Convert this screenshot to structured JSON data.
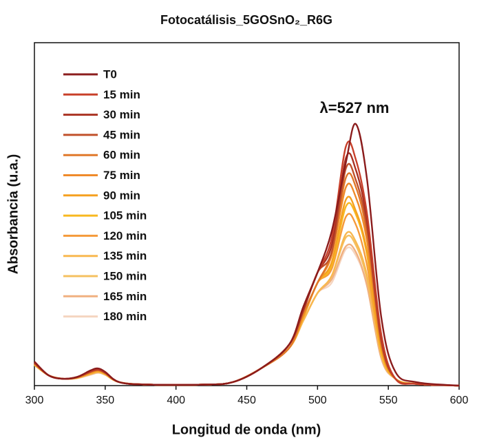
{
  "chart_data": {
    "type": "line",
    "title": "Fotocatálisis_5GOSnO₂_R6G",
    "x_label": "Longitud de onda (nm)",
    "y_label": "Absorbancia (u.a.)",
    "annotation": "λ=527 nm",
    "legend": "upper left",
    "xlim": [
      300,
      600
    ],
    "xticks": [
      300,
      350,
      400,
      450,
      500,
      550,
      600
    ],
    "ylim": [
      0,
      1
    ],
    "x": [
      300,
      310,
      320,
      330,
      340,
      345,
      350,
      360,
      380,
      420,
      440,
      460,
      480,
      490,
      500,
      510,
      520,
      527,
      535,
      545,
      555,
      570,
      600
    ],
    "series": [
      {
        "name": "T0",
        "color": "#8b1c1c",
        "values": [
          0.07,
          0.03,
          0.02,
          0.025,
          0.045,
          0.05,
          0.04,
          0.01,
          0.003,
          0.003,
          0.01,
          0.05,
          0.12,
          0.23,
          0.33,
          0.45,
          0.65,
          0.763,
          0.6,
          0.2,
          0.04,
          0.01,
          0
        ]
      },
      {
        "name": "15 min",
        "color": "#c8402a",
        "values": [
          0.068,
          0.03,
          0.02,
          0.025,
          0.043,
          0.048,
          0.039,
          0.01,
          0.003,
          0.003,
          0.01,
          0.05,
          0.12,
          0.23,
          0.33,
          0.43,
          0.697,
          0.66,
          0.5,
          0.15,
          0.02,
          0.005,
          0
        ]
      },
      {
        "name": "30 min",
        "color": "#a93222",
        "values": [
          0.067,
          0.03,
          0.02,
          0.025,
          0.042,
          0.047,
          0.038,
          0.01,
          0.003,
          0.003,
          0.01,
          0.05,
          0.12,
          0.22,
          0.33,
          0.41,
          0.663,
          0.63,
          0.48,
          0.14,
          0.02,
          0.005,
          0
        ]
      },
      {
        "name": "45 min",
        "color": "#c0502a",
        "values": [
          0.066,
          0.03,
          0.02,
          0.024,
          0.041,
          0.046,
          0.037,
          0.01,
          0.003,
          0.003,
          0.01,
          0.05,
          0.12,
          0.22,
          0.33,
          0.39,
          0.633,
          0.6,
          0.46,
          0.13,
          0.02,
          0.005,
          0
        ]
      },
      {
        "name": "60 min",
        "color": "#e0782a",
        "values": [
          0.065,
          0.03,
          0.02,
          0.024,
          0.04,
          0.045,
          0.036,
          0.01,
          0.003,
          0.003,
          0.01,
          0.05,
          0.11,
          0.21,
          0.3,
          0.39,
          0.606,
          0.58,
          0.44,
          0.12,
          0.02,
          0.005,
          0
        ]
      },
      {
        "name": "75 min",
        "color": "#ef8a2a",
        "values": [
          0.064,
          0.03,
          0.02,
          0.024,
          0.039,
          0.044,
          0.036,
          0.01,
          0.003,
          0.003,
          0.01,
          0.05,
          0.11,
          0.21,
          0.3,
          0.38,
          0.578,
          0.55,
          0.42,
          0.12,
          0.02,
          0.005,
          0
        ]
      },
      {
        "name": "90 min",
        "color": "#f5a020",
        "values": [
          0.063,
          0.03,
          0.02,
          0.023,
          0.038,
          0.043,
          0.035,
          0.01,
          0.003,
          0.003,
          0.01,
          0.05,
          0.11,
          0.2,
          0.3,
          0.36,
          0.542,
          0.51,
          0.39,
          0.11,
          0.02,
          0.005,
          0
        ]
      },
      {
        "name": "105 min",
        "color": "#f8b820",
        "values": [
          0.062,
          0.03,
          0.02,
          0.023,
          0.037,
          0.042,
          0.034,
          0.01,
          0.003,
          0.003,
          0.01,
          0.05,
          0.11,
          0.2,
          0.3,
          0.35,
          0.522,
          0.5,
          0.38,
          0.1,
          0.02,
          0.005,
          0
        ]
      },
      {
        "name": "120 min",
        "color": "#f59a3a",
        "values": [
          0.062,
          0.03,
          0.02,
          0.023,
          0.036,
          0.041,
          0.034,
          0.01,
          0.003,
          0.003,
          0.01,
          0.05,
          0.11,
          0.2,
          0.3,
          0.34,
          0.492,
          0.47,
          0.35,
          0.1,
          0.02,
          0.005,
          0
        ]
      },
      {
        "name": "135 min",
        "color": "#f8b850",
        "values": [
          0.061,
          0.03,
          0.02,
          0.022,
          0.035,
          0.04,
          0.033,
          0.01,
          0.003,
          0.003,
          0.01,
          0.05,
          0.11,
          0.19,
          0.27,
          0.32,
          0.442,
          0.42,
          0.32,
          0.09,
          0.02,
          0.005,
          0
        ]
      },
      {
        "name": "150 min",
        "color": "#f5c060",
        "values": [
          0.06,
          0.03,
          0.02,
          0.022,
          0.034,
          0.039,
          0.032,
          0.01,
          0.003,
          0.003,
          0.01,
          0.05,
          0.11,
          0.19,
          0.27,
          0.32,
          0.432,
          0.41,
          0.31,
          0.09,
          0.02,
          0.005,
          0
        ]
      },
      {
        "name": "165 min",
        "color": "#f0b080",
        "values": [
          0.06,
          0.03,
          0.02,
          0.022,
          0.033,
          0.038,
          0.032,
          0.01,
          0.003,
          0.003,
          0.01,
          0.05,
          0.11,
          0.19,
          0.27,
          0.31,
          0.406,
          0.39,
          0.29,
          0.08,
          0.02,
          0.005,
          0
        ]
      },
      {
        "name": "180 min",
        "color": "#f5d5c0",
        "values": [
          0.06,
          0.03,
          0.02,
          0.021,
          0.032,
          0.037,
          0.031,
          0.01,
          0.003,
          0.003,
          0.01,
          0.05,
          0.11,
          0.19,
          0.27,
          0.3,
          0.398,
          0.38,
          0.29,
          0.08,
          0.02,
          0.005,
          0
        ]
      }
    ]
  }
}
